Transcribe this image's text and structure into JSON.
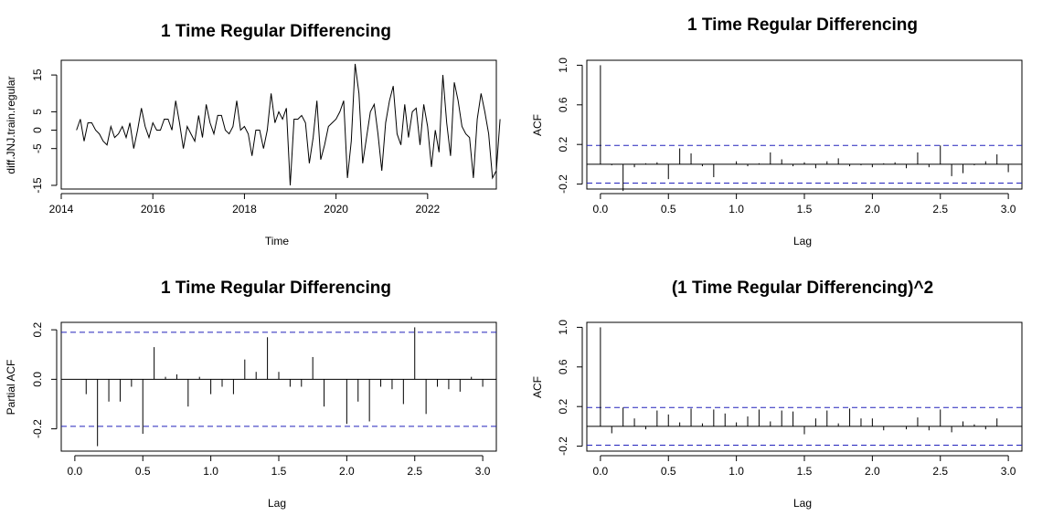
{
  "chart_data": [
    {
      "id": "ts",
      "type": "line",
      "title": "1 Time Regular Differencing",
      "xlabel": "Time",
      "ylabel": "diff.JNJ.train.regular",
      "xlim": [
        2014.0,
        2023.5
      ],
      "ylim": [
        -16,
        19
      ],
      "xticks": [
        2014,
        2016,
        2018,
        2020,
        2022
      ],
      "yticks": [
        -15,
        -5,
        0,
        5,
        15
      ],
      "series": [
        {
          "start": 2014.333,
          "step": 0.08333,
          "values": [
            0,
            3,
            -3,
            2,
            2,
            0,
            -1,
            -3,
            -4,
            1,
            -2,
            -1,
            1,
            -2,
            2,
            -5,
            0,
            6,
            1,
            -2,
            2,
            0,
            0,
            3,
            3,
            0,
            8,
            2,
            -5,
            1,
            -1,
            -3,
            4,
            -2,
            7,
            2,
            -1,
            4,
            4,
            0,
            -1,
            1,
            8,
            0,
            1,
            -1,
            -7,
            0,
            0,
            -5,
            0,
            10,
            2,
            5,
            3,
            6,
            -15,
            3,
            3,
            4,
            2,
            -9,
            -2,
            8,
            -8,
            -4,
            1,
            2,
            3,
            5,
            8,
            -13,
            -3,
            18,
            10,
            -9,
            -2,
            5,
            7,
            -1,
            -11,
            2,
            8,
            12,
            -1,
            -4,
            7,
            -2,
            5,
            6,
            -4,
            7,
            1,
            -10,
            0,
            -6,
            15,
            2,
            -7,
            13,
            8,
            1,
            -1,
            -2,
            -13,
            3,
            10,
            5,
            -1,
            -13,
            -11,
            3
          ]
        }
      ]
    },
    {
      "id": "acf1",
      "type": "bar",
      "title": "1 Time Regular Differencing",
      "xlabel": "Lag",
      "ylabel": "ACF",
      "xlim": [
        -0.1,
        3.1
      ],
      "ylim": [
        -0.25,
        1.05
      ],
      "xticks": [
        "0.0",
        "0.5",
        "1.0",
        "1.5",
        "2.0",
        "2.5",
        "3.0"
      ],
      "yticks": [
        "-0.2",
        "0.2",
        "0.6",
        "1.0"
      ],
      "conf": 0.19,
      "step": 0.08333,
      "values": [
        1.0,
        -0.01,
        -0.27,
        -0.03,
        0.01,
        0.02,
        -0.15,
        0.16,
        0.11,
        -0.02,
        -0.13,
        0.0,
        0.03,
        -0.02,
        0.01,
        0.12,
        0.05,
        -0.02,
        0.02,
        -0.04,
        0.03,
        0.06,
        -0.02,
        -0.01,
        -0.03,
        0.01,
        0.02,
        -0.04,
        0.12,
        -0.03,
        0.19,
        -0.12,
        -0.09,
        -0.01,
        0.03,
        0.1,
        -0.08
      ]
    },
    {
      "id": "pacf",
      "type": "bar",
      "title": "1 Time Regular Differencing",
      "xlabel": "Lag",
      "ylabel": "Partial ACF",
      "xlim": [
        -0.1,
        3.1
      ],
      "ylim": [
        -0.29,
        0.23
      ],
      "xticks": [
        "0.0",
        "0.5",
        "1.0",
        "1.5",
        "2.0",
        "2.5",
        "3.0"
      ],
      "yticks": [
        "-0.2",
        "0.0",
        "0.2"
      ],
      "conf": 0.19,
      "step": 0.08333,
      "values": [
        -0.06,
        -0.27,
        -0.09,
        -0.09,
        -0.03,
        -0.22,
        0.13,
        0.01,
        0.02,
        -0.11,
        0.01,
        -0.06,
        -0.03,
        -0.06,
        0.08,
        0.03,
        0.17,
        0.03,
        -0.03,
        -0.03,
        0.09,
        -0.11,
        0.0,
        -0.18,
        -0.09,
        -0.17,
        -0.03,
        -0.04,
        -0.1,
        0.21,
        -0.14,
        -0.03,
        -0.04,
        -0.05,
        0.01,
        -0.03
      ]
    },
    {
      "id": "acf2",
      "type": "bar",
      "title": "(1 Time Regular Differencing)^2",
      "xlabel": "Lag",
      "ylabel": "ACF",
      "xlim": [
        -0.1,
        3.1
      ],
      "ylim": [
        -0.25,
        1.05
      ],
      "xticks": [
        "0.0",
        "0.5",
        "1.0",
        "1.5",
        "2.0",
        "2.5",
        "3.0"
      ],
      "yticks": [
        "-0.2",
        "0.2",
        "0.6",
        "1.0"
      ],
      "conf": 0.19,
      "step": 0.08333,
      "values": [
        1.0,
        -0.07,
        0.19,
        0.08,
        -0.03,
        0.16,
        0.12,
        0.04,
        0.18,
        0.03,
        0.17,
        0.13,
        0.04,
        0.1,
        0.17,
        0.05,
        0.16,
        0.15,
        -0.08,
        0.08,
        0.16,
        0.03,
        0.18,
        0.08,
        0.08,
        -0.04,
        0.0,
        -0.03,
        0.09,
        -0.04,
        0.17,
        -0.06,
        0.05,
        0.02,
        -0.03,
        0.08
      ]
    }
  ]
}
